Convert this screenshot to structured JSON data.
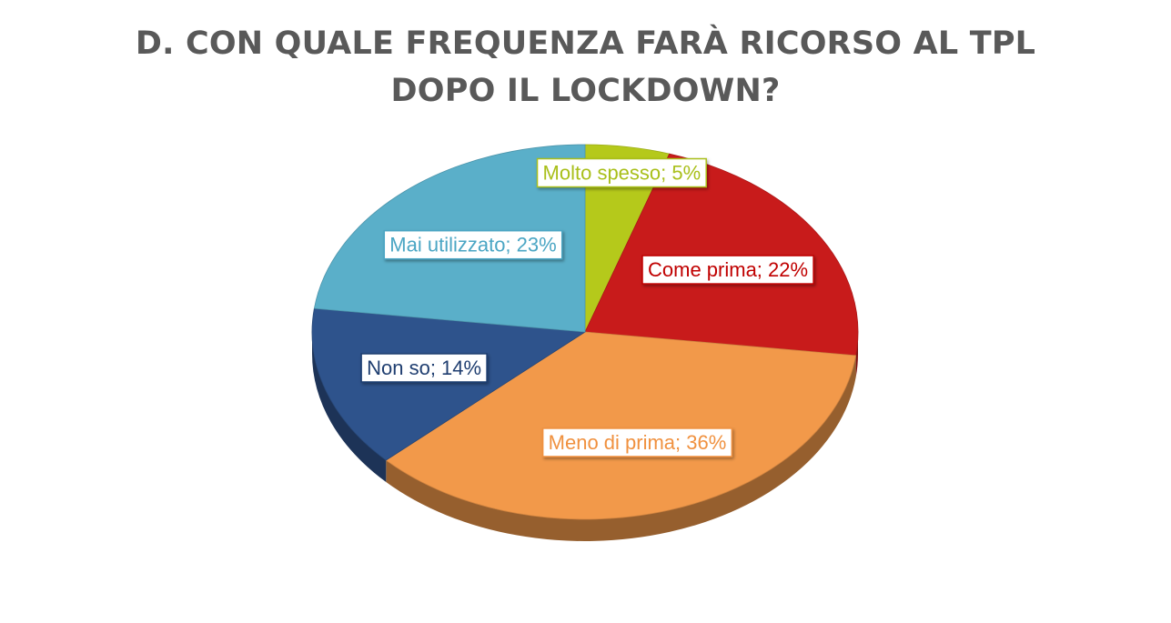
{
  "title_lines": [
    "D. CON QUALE FREQUENZA FARÀ RICORSO AL TPL",
    "DOPO IL LOCKDOWN?"
  ],
  "chart_data": {
    "type": "pie",
    "title": "D. CON QUALE FREQUENZA FARÀ RICORSO AL TPL DOPO IL LOCKDOWN?",
    "slices": [
      {
        "name": "Molto spesso",
        "value": 5,
        "label": "Molto spesso; 5%",
        "color": "#b5c91b",
        "label_color": "#a9bf1a"
      },
      {
        "name": "Come prima",
        "value": 22,
        "label": "Come prima; 22%",
        "color": "#c81b1b",
        "label_color": "#c00000"
      },
      {
        "name": "Meno di prima",
        "value": 36,
        "label": "Meno di prima; 36%",
        "color": "#f2994a",
        "label_color": "#f0913f"
      },
      {
        "name": "Non so",
        "value": 14,
        "label": "Non so; 14%",
        "color": "#2e538c",
        "label_color": "#1f3e70"
      },
      {
        "name": "Mai utilizzato",
        "value": 23,
        "label": "Mai utilizzato; 23%",
        "color": "#5aafc9",
        "label_color": "#4ba6c4"
      }
    ],
    "legend": "none",
    "three_d": true
  }
}
